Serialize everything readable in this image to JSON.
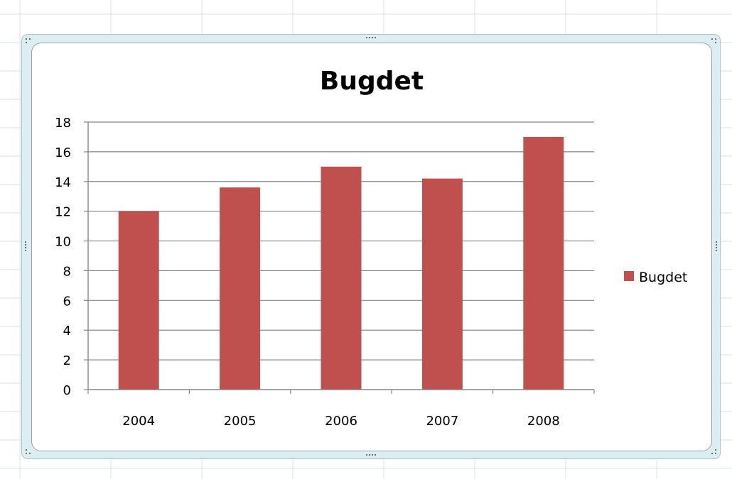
{
  "chart_data": {
    "type": "bar",
    "title": "Bugdet",
    "categories": [
      "2004",
      "2005",
      "2006",
      "2007",
      "2008"
    ],
    "series": [
      {
        "name": "Bugdet",
        "values": [
          12,
          13.6,
          15,
          14.2,
          17
        ],
        "color": "#c0504d"
      }
    ],
    "xlabel": "",
    "ylabel": "",
    "ylim": [
      0,
      18
    ],
    "yticks": [
      0,
      2,
      4,
      6,
      8,
      10,
      12,
      14,
      16,
      18
    ],
    "grid": true,
    "legend": "right"
  },
  "colors": {
    "gridline": "#868686",
    "axis": "#868686",
    "sheet_grid": "#dde3ea"
  }
}
